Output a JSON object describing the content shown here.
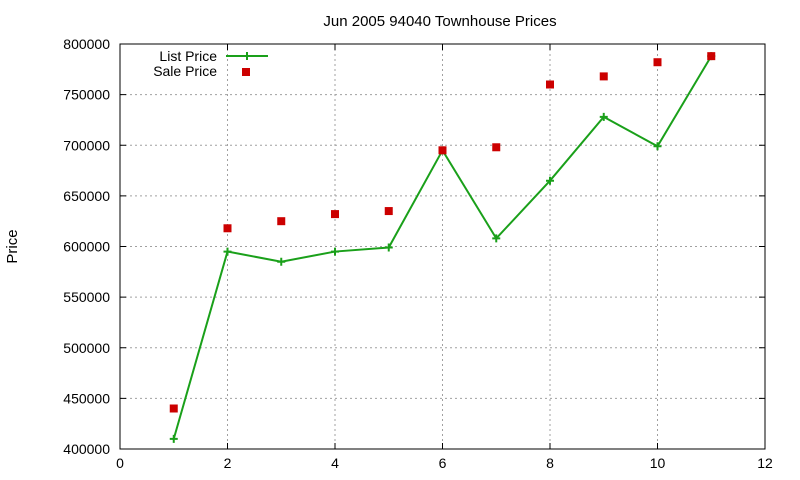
{
  "chart_data": {
    "type": "line",
    "title": "Jun 2005 94040 Townhouse Prices",
    "xlabel": "",
    "ylabel": "Price",
    "xlim": [
      0,
      12
    ],
    "ylim": [
      400000,
      800000
    ],
    "x_ticks": [
      "0",
      "2",
      "4",
      "6",
      "8",
      "10",
      "12"
    ],
    "x_tick_values": [
      0,
      2,
      4,
      6,
      8,
      10,
      12
    ],
    "y_ticks": [
      "400000",
      "450000",
      "500000",
      "550000",
      "600000",
      "650000",
      "700000",
      "750000",
      "800000"
    ],
    "y_tick_values": [
      400000,
      450000,
      500000,
      550000,
      600000,
      650000,
      700000,
      750000,
      800000
    ],
    "grid": true,
    "legend_position": "top-left",
    "series": [
      {
        "name": "List Price",
        "style": "line-plus",
        "color": "#1aa01a",
        "x": [
          1,
          2,
          3,
          4,
          5,
          6,
          7,
          8,
          9,
          10,
          11
        ],
        "values": [
          410000,
          595000,
          585000,
          595000,
          599000,
          695000,
          608000,
          665000,
          728000,
          699000,
          788000
        ]
      },
      {
        "name": "Sale Price",
        "style": "square-points",
        "color": "#cc0000",
        "x": [
          1,
          2,
          3,
          4,
          5,
          6,
          7,
          8,
          9,
          10,
          11
        ],
        "values": [
          440000,
          618000,
          625000,
          632000,
          635000,
          695000,
          698000,
          760000,
          768000,
          782000,
          788000
        ]
      }
    ]
  }
}
